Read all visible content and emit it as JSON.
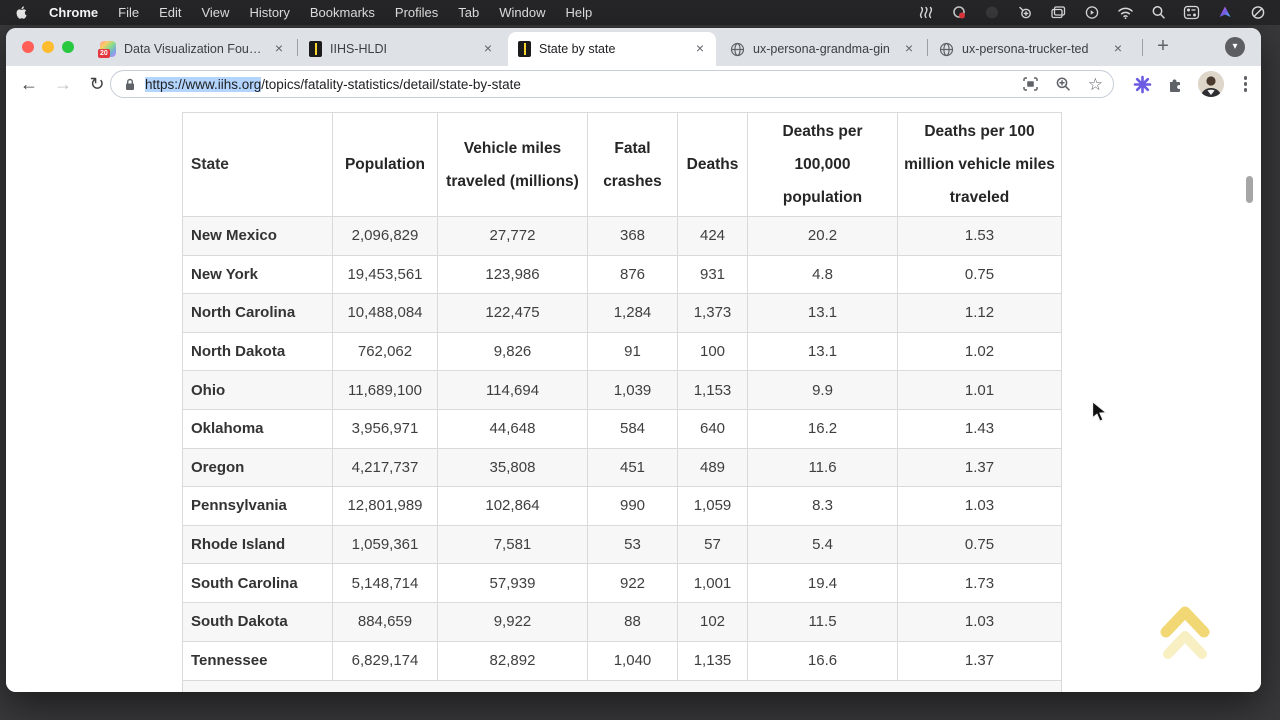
{
  "menu_bar": {
    "apple_icon": "apple-logo",
    "items": [
      "Chrome",
      "File",
      "Edit",
      "View",
      "History",
      "Bookmarks",
      "Profiles",
      "Tab",
      "Window",
      "Help"
    ],
    "status_icons": [
      "waves-icon",
      "screen-recording-icon",
      "dimmed-circle-icon",
      "zoom-magnifier-icon",
      "stacked-windows-icon",
      "play-circle-icon",
      "wifi-icon",
      "spotlight-search-icon",
      "control-center-icon",
      "color-swirl-icon",
      "focus-mode-icon"
    ]
  },
  "window_controls": {
    "close_color": "#ff5f57",
    "minimize_color": "#febc2e",
    "zoom_color": "#28c840"
  },
  "tab_bar": {
    "tabs": [
      {
        "label": "Data Visualization Founda",
        "favicon": "course-badge-icon",
        "badge": "20",
        "active": false
      },
      {
        "label": "IIHS-HLDI",
        "favicon": "road-icon",
        "active": false
      },
      {
        "label": "State by state",
        "favicon": "road-icon",
        "active": true
      },
      {
        "label": "ux-persona-grandma-gin",
        "favicon": "globe-icon",
        "active": false
      },
      {
        "label": "ux-persona-trucker-ted",
        "favicon": "globe-icon",
        "active": false
      }
    ],
    "close_glyph": "×",
    "new_tab_glyph": "+",
    "tab_menu_glyph": "▾"
  },
  "toolbar": {
    "back_glyph": "←",
    "forward_glyph": "→",
    "reload_glyph": "↻",
    "url_selected": "https://www.iihs.org",
    "url_rest": "/topics/fatality-statistics/detail/state-by-state",
    "selection_color": "#b3d4fc",
    "bookmark_glyph": "☆"
  },
  "content": {
    "table": {
      "headers": [
        "State",
        "Population",
        "Vehicle miles traveled (millions)",
        "Fatal crashes",
        "Deaths",
        "Deaths per 100,000 population",
        "Deaths per 100 million vehicle miles traveled"
      ],
      "rows": [
        {
          "state": "New Mexico",
          "values": [
            "2,096,829",
            "27,772",
            "368",
            "424",
            "20.2",
            "1.53"
          ]
        },
        {
          "state": "New York",
          "values": [
            "19,453,561",
            "123,986",
            "876",
            "931",
            "4.8",
            "0.75"
          ]
        },
        {
          "state": "North Carolina",
          "values": [
            "10,488,084",
            "122,475",
            "1,284",
            "1,373",
            "13.1",
            "1.12"
          ]
        },
        {
          "state": "North Dakota",
          "values": [
            "762,062",
            "9,826",
            "91",
            "100",
            "13.1",
            "1.02"
          ]
        },
        {
          "state": "Ohio",
          "values": [
            "11,689,100",
            "114,694",
            "1,039",
            "1,153",
            "9.9",
            "1.01"
          ]
        },
        {
          "state": "Oklahoma",
          "values": [
            "3,956,971",
            "44,648",
            "584",
            "640",
            "16.2",
            "1.43"
          ]
        },
        {
          "state": "Oregon",
          "values": [
            "4,217,737",
            "35,808",
            "451",
            "489",
            "11.6",
            "1.37"
          ]
        },
        {
          "state": "Pennsylvania",
          "values": [
            "12,801,989",
            "102,864",
            "990",
            "1,059",
            "8.3",
            "1.03"
          ]
        },
        {
          "state": "Rhode Island",
          "values": [
            "1,059,361",
            "7,581",
            "53",
            "57",
            "5.4",
            "0.75"
          ]
        },
        {
          "state": "South Carolina",
          "values": [
            "5,148,714",
            "57,939",
            "922",
            "1,001",
            "19.4",
            "1.73"
          ]
        },
        {
          "state": "South Dakota",
          "values": [
            "884,659",
            "9,922",
            "88",
            "102",
            "11.5",
            "1.03"
          ]
        },
        {
          "state": "Tennessee",
          "values": [
            "6,829,174",
            "82,892",
            "1,040",
            "1,135",
            "16.6",
            "1.37"
          ]
        }
      ]
    },
    "back_to_top_color": "#f2d874"
  }
}
